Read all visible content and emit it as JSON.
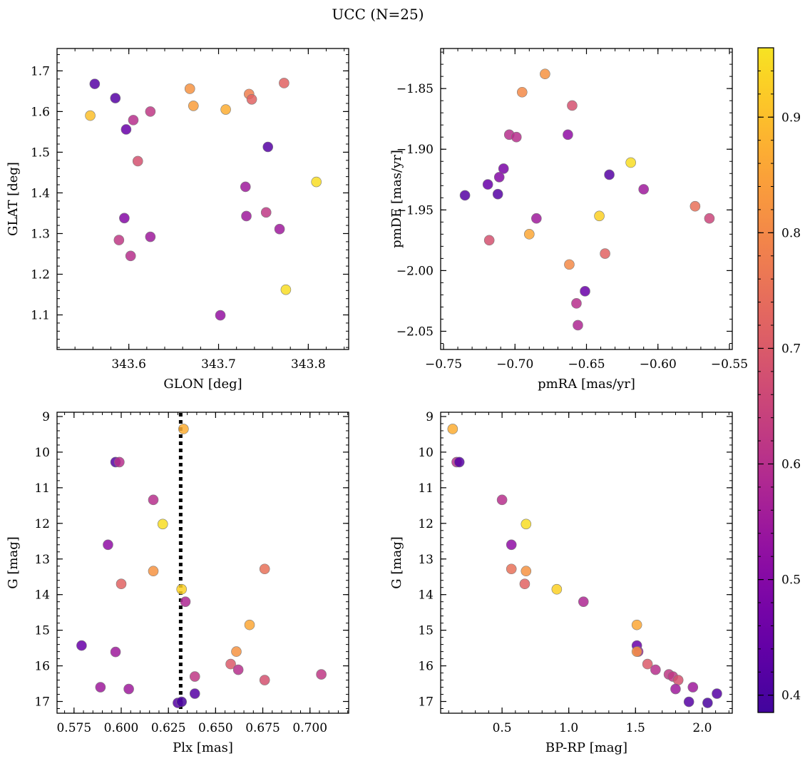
{
  "figure": {
    "title": "UCC (N=25)"
  },
  "colorbar": {
    "range": [
      0.385,
      0.96
    ],
    "ticks": [
      0.4,
      0.5,
      0.6,
      0.7,
      0.8,
      0.9
    ],
    "tick_labels": [
      "0.4",
      "0.5",
      "0.6",
      "0.7",
      "0.8",
      "0.9"
    ],
    "colormap": "plasma"
  },
  "chart_data": [
    {
      "id": "glon-glat",
      "type": "scatter",
      "xlabel": "GLON [deg]",
      "ylabel": "GLAT [deg]",
      "xlim": [
        343.52,
        343.845
      ],
      "ylim": [
        1.015,
        1.755
      ],
      "xticks": [
        343.6,
        343.7,
        343.8
      ],
      "xtick_labels": [
        "343.6",
        "343.7",
        "343.8"
      ],
      "yticks": [
        1.1,
        1.2,
        1.3,
        1.4,
        1.5,
        1.6,
        1.7
      ],
      "ytick_labels": [
        "1.1",
        "1.2",
        "1.3",
        "1.4",
        "1.5",
        "1.6",
        "1.7"
      ],
      "points": [
        {
          "x": 343.562,
          "y": 1.668,
          "c": 0.42
        },
        {
          "x": 343.585,
          "y": 1.633,
          "c": 0.42
        },
        {
          "x": 343.557,
          "y": 1.59,
          "c": 0.9
        },
        {
          "x": 343.597,
          "y": 1.556,
          "c": 0.45
        },
        {
          "x": 343.605,
          "y": 1.579,
          "c": 0.6
        },
        {
          "x": 343.624,
          "y": 1.6,
          "c": 0.62
        },
        {
          "x": 343.61,
          "y": 1.478,
          "c": 0.68
        },
        {
          "x": 343.668,
          "y": 1.656,
          "c": 0.82
        },
        {
          "x": 343.672,
          "y": 1.614,
          "c": 0.84
        },
        {
          "x": 343.708,
          "y": 1.605,
          "c": 0.87
        },
        {
          "x": 343.734,
          "y": 1.643,
          "c": 0.78
        },
        {
          "x": 343.737,
          "y": 1.63,
          "c": 0.72
        },
        {
          "x": 343.773,
          "y": 1.67,
          "c": 0.72
        },
        {
          "x": 343.755,
          "y": 1.513,
          "c": 0.42
        },
        {
          "x": 343.809,
          "y": 1.427,
          "c": 0.95
        },
        {
          "x": 343.73,
          "y": 1.415,
          "c": 0.55
        },
        {
          "x": 343.595,
          "y": 1.338,
          "c": 0.5
        },
        {
          "x": 343.731,
          "y": 1.343,
          "c": 0.55
        },
        {
          "x": 343.753,
          "y": 1.352,
          "c": 0.62
        },
        {
          "x": 343.768,
          "y": 1.311,
          "c": 0.55
        },
        {
          "x": 343.589,
          "y": 1.284,
          "c": 0.62
        },
        {
          "x": 343.624,
          "y": 1.292,
          "c": 0.55
        },
        {
          "x": 343.602,
          "y": 1.245,
          "c": 0.6
        },
        {
          "x": 343.775,
          "y": 1.162,
          "c": 0.95
        },
        {
          "x": 343.702,
          "y": 1.099,
          "c": 0.53
        }
      ]
    },
    {
      "id": "pmra-pmde",
      "type": "scatter",
      "xlabel": "pmRA [mas/yr]",
      "ylabel": "pmDE [mas/yr]",
      "xlim": [
        -0.752,
        -0.548
      ],
      "ylim": [
        -2.065,
        -1.817
      ],
      "xticks": [
        -0.75,
        -0.7,
        -0.65,
        -0.6,
        -0.55
      ],
      "xtick_labels": [
        "−0.75",
        "−0.70",
        "−0.65",
        "−0.60",
        "−0.55"
      ],
      "yticks": [
        -2.05,
        -2.0,
        -1.95,
        -1.9,
        -1.85
      ],
      "ytick_labels": [
        "−2.05",
        "−2.00",
        "−1.95",
        "−1.90",
        "−1.85"
      ],
      "points": [
        {
          "x": -0.679,
          "y": -1.838,
          "c": 0.82
        },
        {
          "x": -0.695,
          "y": -1.853,
          "c": 0.8
        },
        {
          "x": -0.66,
          "y": -1.864,
          "c": 0.68
        },
        {
          "x": -0.704,
          "y": -1.888,
          "c": 0.6
        },
        {
          "x": -0.699,
          "y": -1.89,
          "c": 0.6
        },
        {
          "x": -0.663,
          "y": -1.888,
          "c": 0.52
        },
        {
          "x": -0.708,
          "y": -1.916,
          "c": 0.48
        },
        {
          "x": -0.619,
          "y": -1.911,
          "c": 0.95
        },
        {
          "x": -0.634,
          "y": -1.921,
          "c": 0.42
        },
        {
          "x": -0.711,
          "y": -1.923,
          "c": 0.5
        },
        {
          "x": -0.719,
          "y": -1.929,
          "c": 0.45
        },
        {
          "x": -0.735,
          "y": -1.938,
          "c": 0.42
        },
        {
          "x": -0.712,
          "y": -1.937,
          "c": 0.42
        },
        {
          "x": -0.61,
          "y": -1.933,
          "c": 0.55
        },
        {
          "x": -0.574,
          "y": -1.947,
          "c": 0.75
        },
        {
          "x": -0.564,
          "y": -1.957,
          "c": 0.65
        },
        {
          "x": -0.685,
          "y": -1.957,
          "c": 0.55
        },
        {
          "x": -0.641,
          "y": -1.955,
          "c": 0.93
        },
        {
          "x": -0.718,
          "y": -1.975,
          "c": 0.68
        },
        {
          "x": -0.69,
          "y": -1.97,
          "c": 0.86
        },
        {
          "x": -0.637,
          "y": -1.986,
          "c": 0.72
        },
        {
          "x": -0.662,
          "y": -1.995,
          "c": 0.8
        },
        {
          "x": -0.651,
          "y": -2.017,
          "c": 0.45
        },
        {
          "x": -0.657,
          "y": -2.027,
          "c": 0.6
        },
        {
          "x": -0.656,
          "y": -2.045,
          "c": 0.58
        }
      ]
    },
    {
      "id": "plx-g",
      "type": "scatter",
      "xlabel": "Plx [mas]",
      "ylabel": "G [mag]",
      "xlim": [
        0.566,
        0.7205
      ],
      "ylim": [
        17.33,
        8.88
      ],
      "xticks": [
        0.575,
        0.6,
        0.625,
        0.65,
        0.675,
        0.7
      ],
      "xtick_labels": [
        "0.575",
        "0.600",
        "0.625",
        "0.650",
        "0.675",
        "0.700"
      ],
      "yticks": [
        9,
        10,
        11,
        12,
        13,
        14,
        15,
        16,
        17
      ],
      "ytick_labels": [
        "9",
        "10",
        "11",
        "12",
        "13",
        "14",
        "15",
        "16",
        "17"
      ],
      "vline": {
        "x": 0.6315,
        "style": "dotted"
      },
      "points": [
        {
          "x": 0.633,
          "y": 9.35,
          "c": 0.87
        },
        {
          "x": 0.597,
          "y": 10.28,
          "c": 0.42
        },
        {
          "x": 0.599,
          "y": 10.28,
          "c": 0.6
        },
        {
          "x": 0.617,
          "y": 11.34,
          "c": 0.6
        },
        {
          "x": 0.622,
          "y": 12.02,
          "c": 0.95
        },
        {
          "x": 0.593,
          "y": 12.6,
          "c": 0.52
        },
        {
          "x": 0.617,
          "y": 13.34,
          "c": 0.82
        },
        {
          "x": 0.676,
          "y": 13.28,
          "c": 0.75
        },
        {
          "x": 0.6,
          "y": 13.7,
          "c": 0.72
        },
        {
          "x": 0.632,
          "y": 13.85,
          "c": 0.93
        },
        {
          "x": 0.634,
          "y": 14.2,
          "c": 0.58
        },
        {
          "x": 0.668,
          "y": 14.85,
          "c": 0.86
        },
        {
          "x": 0.579,
          "y": 15.43,
          "c": 0.45
        },
        {
          "x": 0.597,
          "y": 15.61,
          "c": 0.55
        },
        {
          "x": 0.661,
          "y": 15.6,
          "c": 0.82
        },
        {
          "x": 0.658,
          "y": 15.95,
          "c": 0.7
        },
        {
          "x": 0.662,
          "y": 16.11,
          "c": 0.6
        },
        {
          "x": 0.639,
          "y": 16.3,
          "c": 0.62
        },
        {
          "x": 0.706,
          "y": 16.24,
          "c": 0.62
        },
        {
          "x": 0.676,
          "y": 16.4,
          "c": 0.68
        },
        {
          "x": 0.589,
          "y": 16.6,
          "c": 0.55
        },
        {
          "x": 0.604,
          "y": 16.65,
          "c": 0.55
        },
        {
          "x": 0.639,
          "y": 16.78,
          "c": 0.42
        },
        {
          "x": 0.63,
          "y": 17.04,
          "c": 0.42
        },
        {
          "x": 0.632,
          "y": 17.01,
          "c": 0.4
        }
      ]
    },
    {
      "id": "bprp-g",
      "type": "scatter",
      "xlabel": "BP-RP [mag]",
      "ylabel": "G [mag]",
      "xlim": [
        0.04,
        2.225
      ],
      "ylim": [
        17.33,
        8.88
      ],
      "xticks": [
        0.5,
        1.0,
        1.5,
        2.0
      ],
      "xtick_labels": [
        "0.5",
        "1.0",
        "1.5",
        "2.0"
      ],
      "yticks": [
        9,
        10,
        11,
        12,
        13,
        14,
        15,
        16,
        17
      ],
      "ytick_labels": [
        "9",
        "10",
        "11",
        "12",
        "13",
        "14",
        "15",
        "16",
        "17"
      ],
      "points": [
        {
          "x": 0.13,
          "y": 9.35,
          "c": 0.87
        },
        {
          "x": 0.16,
          "y": 10.28,
          "c": 0.6
        },
        {
          "x": 0.18,
          "y": 10.28,
          "c": 0.42
        },
        {
          "x": 0.5,
          "y": 11.34,
          "c": 0.6
        },
        {
          "x": 0.68,
          "y": 12.02,
          "c": 0.95
        },
        {
          "x": 0.57,
          "y": 12.6,
          "c": 0.52
        },
        {
          "x": 0.57,
          "y": 13.28,
          "c": 0.75
        },
        {
          "x": 0.68,
          "y": 13.34,
          "c": 0.82
        },
        {
          "x": 0.67,
          "y": 13.7,
          "c": 0.72
        },
        {
          "x": 0.91,
          "y": 13.85,
          "c": 0.93
        },
        {
          "x": 1.11,
          "y": 14.2,
          "c": 0.58
        },
        {
          "x": 1.51,
          "y": 14.85,
          "c": 0.86
        },
        {
          "x": 1.51,
          "y": 15.43,
          "c": 0.45
        },
        {
          "x": 1.52,
          "y": 15.6,
          "c": 0.55
        },
        {
          "x": 1.51,
          "y": 15.6,
          "c": 0.82
        },
        {
          "x": 1.59,
          "y": 15.95,
          "c": 0.7
        },
        {
          "x": 1.65,
          "y": 16.11,
          "c": 0.6
        },
        {
          "x": 1.75,
          "y": 16.24,
          "c": 0.62
        },
        {
          "x": 1.78,
          "y": 16.3,
          "c": 0.62
        },
        {
          "x": 1.82,
          "y": 16.4,
          "c": 0.68
        },
        {
          "x": 1.93,
          "y": 16.6,
          "c": 0.55
        },
        {
          "x": 1.8,
          "y": 16.65,
          "c": 0.55
        },
        {
          "x": 2.11,
          "y": 16.78,
          "c": 0.42
        },
        {
          "x": 1.9,
          "y": 17.01,
          "c": 0.42
        },
        {
          "x": 2.04,
          "y": 17.04,
          "c": 0.4
        }
      ]
    }
  ]
}
